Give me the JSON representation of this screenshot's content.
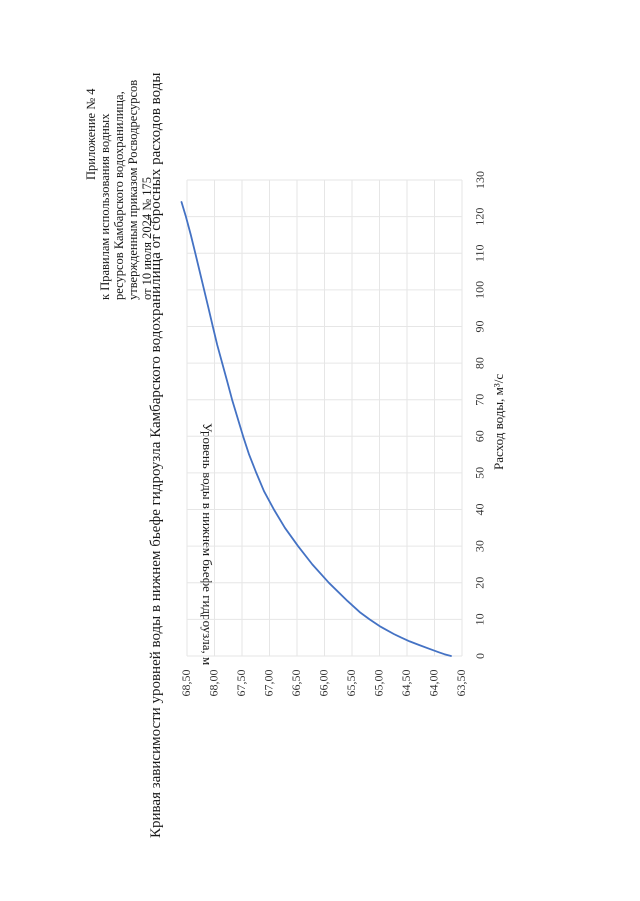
{
  "header": {
    "appendix": "Приложение № 4",
    "lines": [
      "к   Правилам    использования    водных",
      "ресурсов  Камбарского  водохранилища,",
      "утвержденным  приказом  Росводресурсов",
      "от 10 июля 2024 № 175"
    ]
  },
  "chart_data": {
    "type": "line",
    "title": "Кривая зависимости уровней воды в нижнем бьефе гидроузла Камбарского водохранилища от сбросных расходов воды",
    "xlabel": "Расход воды, м³/с",
    "ylabel": "Уровень воды в нижнем бьефе гидроузла, м",
    "xlim": [
      0,
      130
    ],
    "ylim": [
      63.5,
      68.5
    ],
    "x_ticks": [
      "0",
      "10",
      "20",
      "30",
      "40",
      "50",
      "60",
      "70",
      "80",
      "90",
      "100",
      "110",
      "120",
      "130"
    ],
    "y_ticks": [
      "63,50",
      "64,00",
      "64,50",
      "65,00",
      "65,50",
      "66,00",
      "66,50",
      "67,00",
      "67,50",
      "68,00",
      "68,50"
    ],
    "grid": true,
    "series": [
      {
        "name": "Уровень воды",
        "color": "#4472c4",
        "x": [
          0,
          0.5,
          1,
          2,
          3,
          4,
          5,
          6,
          8,
          10,
          12,
          15,
          20,
          25,
          30,
          35,
          40,
          45,
          50,
          55,
          60,
          65,
          70,
          75,
          80,
          85,
          90,
          95,
          100,
          105,
          110,
          115,
          120,
          124
        ],
        "y": [
          63.7,
          63.82,
          63.92,
          64.1,
          64.28,
          64.45,
          64.6,
          64.74,
          64.98,
          65.18,
          65.36,
          65.58,
          65.92,
          66.22,
          66.48,
          66.72,
          66.92,
          67.1,
          67.24,
          67.37,
          67.48,
          67.58,
          67.68,
          67.77,
          67.86,
          67.95,
          68.03,
          68.11,
          68.19,
          68.27,
          68.35,
          68.43,
          68.52,
          68.6
        ]
      }
    ]
  }
}
